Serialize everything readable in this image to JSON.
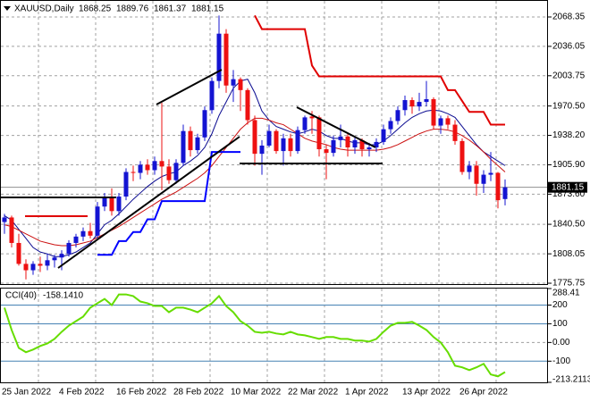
{
  "chart_data": {
    "type": "candlestick",
    "title": "XAUUSD,Daily",
    "categories": [
      "25 Jan 2022",
      null,
      null,
      null,
      null,
      null,
      null,
      null,
      "4 Feb 2022",
      null,
      null,
      null,
      null,
      null,
      null,
      null,
      "16 Feb 2022",
      null,
      null,
      null,
      null,
      null,
      null,
      null,
      "28 Feb 2022",
      null,
      null,
      null,
      null,
      null,
      null,
      null,
      "10 Mar 2022",
      null,
      null,
      null,
      null,
      null,
      null,
      null,
      "22 Mar 2022",
      null,
      null,
      null,
      null,
      null,
      null,
      null,
      "1 Apr 2022",
      null,
      null,
      null,
      null,
      null,
      null,
      null,
      "13 Apr 2022",
      null,
      null,
      null,
      null,
      null,
      null,
      null,
      "26 Apr 2022",
      null,
      null,
      null,
      null,
      null,
      null
    ],
    "open": [
      1843,
      1848,
      1820,
      1797,
      1790,
      1797,
      1795,
      1801,
      1804,
      1808,
      1820,
      1827,
      1833,
      1828,
      1860,
      1870,
      1855,
      1871,
      1898,
      1897,
      1906,
      1900,
      1910,
      1904,
      1889,
      1908,
      1943,
      1922,
      1936,
      1966,
      1998,
      2050,
      1993,
      2000,
      1988,
      1955,
      1918,
      1927,
      1943,
      1921,
      1935,
      1921,
      1944,
      1959,
      1958,
      1923,
      1919,
      1933,
      1937,
      1925,
      1933,
      1923,
      1925,
      1931,
      1945,
      1954,
      1966,
      1977,
      1970,
      1975,
      1978,
      1949,
      1957,
      1950,
      1932,
      1898,
      1905,
      1885,
      1895,
      1897,
      1868.25
    ],
    "high": [
      1852,
      1850,
      1830,
      1802,
      1800,
      1805,
      1808,
      1807,
      1812,
      1823,
      1830,
      1837,
      1842,
      1865,
      1875,
      1880,
      1875,
      1902,
      1905,
      1910,
      1912,
      1915,
      1974,
      1912,
      1912,
      1950,
      1948,
      1940,
      1970,
      2002,
      2070,
      2055,
      2010,
      2002,
      1990,
      1960,
      1933,
      1950,
      1945,
      1940,
      1940,
      1948,
      1960,
      1965,
      1960,
      1928,
      1938,
      1950,
      1940,
      1936,
      1935,
      1930,
      1935,
      1950,
      1958,
      1970,
      1982,
      1980,
      1985,
      1998,
      1980,
      1960,
      1960,
      1955,
      1935,
      1910,
      1910,
      1900,
      1920,
      1898,
      1889.76
    ],
    "low": [
      1830,
      1815,
      1795,
      1780,
      1785,
      1788,
      1790,
      1793,
      1790,
      1805,
      1815,
      1822,
      1825,
      1825,
      1855,
      1850,
      1850,
      1867,
      1888,
      1890,
      1895,
      1895,
      1878,
      1885,
      1885,
      1905,
      1915,
      1918,
      1932,
      1962,
      1990,
      1985,
      1975,
      1965,
      1950,
      1905,
      1895,
      1925,
      1918,
      1905,
      1915,
      1918,
      1940,
      1940,
      1915,
      1890,
      1915,
      1925,
      1915,
      1918,
      1915,
      1915,
      1920,
      1928,
      1940,
      1950,
      1960,
      1962,
      1965,
      1970,
      1945,
      1940,
      1945,
      1928,
      1895,
      1890,
      1872,
      1875,
      1888,
      1858,
      1861.37
    ],
    "close": [
      1848,
      1820,
      1797,
      1790,
      1797,
      1795,
      1801,
      1804,
      1808,
      1820,
      1827,
      1833,
      1828,
      1860,
      1870,
      1855,
      1871,
      1898,
      1897,
      1906,
      1900,
      1910,
      1904,
      1889,
      1908,
      1943,
      1922,
      1936,
      1966,
      1998,
      2050,
      1993,
      2000,
      1988,
      1955,
      1918,
      1927,
      1943,
      1921,
      1935,
      1921,
      1944,
      1958,
      1957,
      1923,
      1919,
      1933,
      1937,
      1925,
      1933,
      1923,
      1925,
      1931,
      1945,
      1954,
      1966,
      1977,
      1970,
      1975,
      1978,
      1949,
      1957,
      1950,
      1932,
      1898,
      1905,
      1885,
      1895,
      1897,
      1867,
      1881.15
    ],
    "up_color": "#1414d2",
    "down_color": "#ee1111",
    "ylim": [
      1774.8,
      2087.0
    ],
    "yticks": [
      2068.35,
      2036.05,
      2003.75,
      {
        "value": 1970.5,
        "label": "1970.50"
      },
      {
        "value": 1938.2,
        "label": "1938.20"
      },
      {
        "value": 1905.9,
        "label": "1905.90"
      },
      {
        "value": 1873.6,
        "label": "1873.60"
      },
      {
        "value": 1840.5,
        "label": "1840.50"
      },
      1808.05,
      1775.75
    ],
    "grid": true,
    "overlays": [
      {
        "color": "#0a0a90",
        "values": [
          1850,
          1845,
          1835,
          1825,
          1815,
          1810,
          1808,
          1805,
          1805,
          1807,
          1810,
          1815,
          1820,
          1830,
          1840,
          1845,
          1852,
          1860,
          1868,
          1875,
          1882,
          1888,
          1893,
          1896,
          1898,
          1905,
          1910,
          1916,
          1925,
          1940,
          1960,
          1975,
          1990,
          1998,
          2000,
          1985,
          1965,
          1955,
          1948,
          1945,
          1942,
          1940,
          1942,
          1945,
          1943,
          1938,
          1935,
          1935,
          1932,
          1930,
          1930,
          1928,
          1928,
          1932,
          1938,
          1945,
          1952,
          1958,
          1962,
          1965,
          1966,
          1965,
          1962,
          1958,
          1948,
          1938,
          1928,
          1920,
          1915,
          1910,
          1905
        ]
      },
      {
        "color": "#cc1111",
        "values": [
          1840,
          1838,
          1834,
          1830,
          1826,
          1822,
          1820,
          1818,
          1817,
          1817,
          1818,
          1820,
          1822,
          1826,
          1830,
          1834,
          1838,
          1843,
          1848,
          1853,
          1858,
          1863,
          1868,
          1872,
          1876,
          1881,
          1886,
          1891,
          1897,
          1905,
          1915,
          1925,
          1935,
          1945,
          1952,
          1957,
          1957,
          1955,
          1952,
          1950,
          1945,
          1940,
          1935,
          1932,
          1930,
          1928,
          1925,
          1923,
          1922,
          1922,
          1922,
          1922,
          1922,
          1923,
          1925,
          1928,
          1932,
          1936,
          1940,
          1943,
          1945,
          1945,
          1944,
          1942,
          1938,
          1933,
          1927,
          1920,
          1912,
          1905,
          1898
        ]
      },
      {
        "color": "#e00000",
        "width": 2,
        "values": [
          null,
          null,
          null,
          null,
          null,
          null,
          null,
          null,
          null,
          null,
          null,
          null,
          null,
          null,
          null,
          null,
          null,
          null,
          null,
          null,
          null,
          null,
          null,
          null,
          null,
          null,
          null,
          null,
          null,
          null,
          null,
          null,
          null,
          null,
          null,
          2070,
          2055,
          2055,
          2055,
          2055,
          2055,
          2055,
          2055,
          2015,
          2003,
          2003,
          2003,
          2003,
          2003,
          2003,
          2003,
          2003,
          2003,
          2003,
          2003,
          2003,
          2003,
          2003,
          2003,
          2003,
          2003,
          2003,
          1988,
          1988,
          1976,
          1964,
          1964,
          1964,
          1950,
          1950,
          1950
        ]
      },
      {
        "color": "#0000ff",
        "width": 2,
        "values": [
          null,
          null,
          null,
          null,
          null,
          null,
          null,
          null,
          null,
          null,
          null,
          null,
          null,
          1807,
          1807,
          1807,
          1822,
          1822,
          1832,
          1832,
          1846,
          1846,
          1866,
          1866,
          1866,
          1866,
          1866,
          1866,
          1866,
          1920,
          1920,
          1920,
          1920,
          1920,
          null,
          null,
          null,
          null,
          null,
          null,
          null,
          null,
          null,
          null,
          null,
          null,
          null,
          null,
          null,
          null,
          null,
          null,
          null,
          null,
          null,
          null,
          null,
          null,
          null,
          null,
          null,
          null,
          null,
          null,
          null,
          null,
          null,
          null,
          null,
          null,
          null
        ]
      }
    ],
    "cci": {
      "title": "CCI(40)",
      "value_label": "-158.1410",
      "color": "#66dd00",
      "values": [
        186,
        67,
        -29,
        -52,
        -38,
        -19,
        -5,
        19,
        57,
        90,
        114,
        138,
        186,
        210,
        233,
        200,
        257,
        257,
        248,
        219,
        210,
        195,
        195,
        162,
        186,
        186,
        176,
        162,
        186,
        210,
        248,
        195,
        162,
        114,
        90,
        57,
        52,
        57,
        48,
        43,
        57,
        43,
        38,
        29,
        19,
        29,
        29,
        19,
        19,
        10,
        10,
        5,
        19,
        57,
        90,
        105,
        105,
        110,
        90,
        67,
        29,
        0,
        -52,
        -124,
        -133,
        -148,
        -133,
        -114,
        -171,
        -181,
        -158.141
      ],
      "ylim": [
        -213.2113,
        288.41
      ],
      "yticks": [
        288.41,
        200,
        100,
        {
          "value": 0,
          "label": "0.00"
        },
        -100,
        -213.2113
      ]
    }
  }
}
